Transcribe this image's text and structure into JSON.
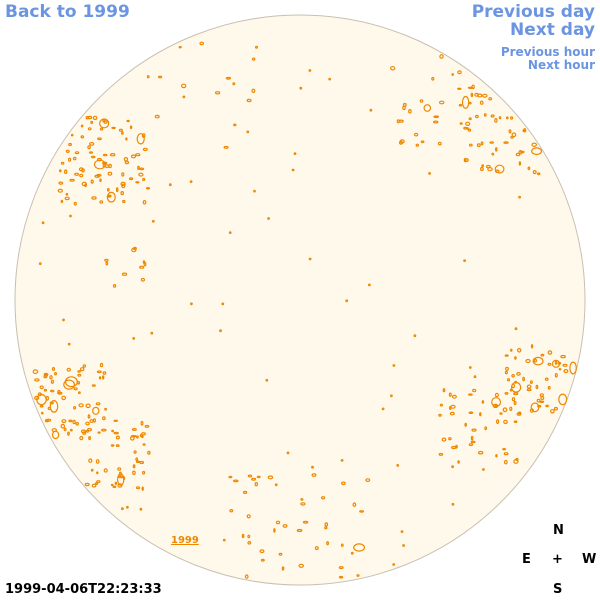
{
  "nav": {
    "back_label": "Back to 1999",
    "previous_day_label": "Previous day",
    "next_day_label": "Next day",
    "previous_hour_label": "Previous hour",
    "next_hour_label": "Next hour"
  },
  "observation": {
    "timestamp": "1999-04-06T22:23:33",
    "year_link": "1999"
  },
  "compass": {
    "north": "N",
    "east": "E",
    "center": "+",
    "west": "W",
    "south": "S"
  },
  "colors": {
    "disk_fill": "#fff9ec",
    "disk_border": "#c8c0b0",
    "contour": "#ee8800",
    "link": "#6b95e0"
  }
}
